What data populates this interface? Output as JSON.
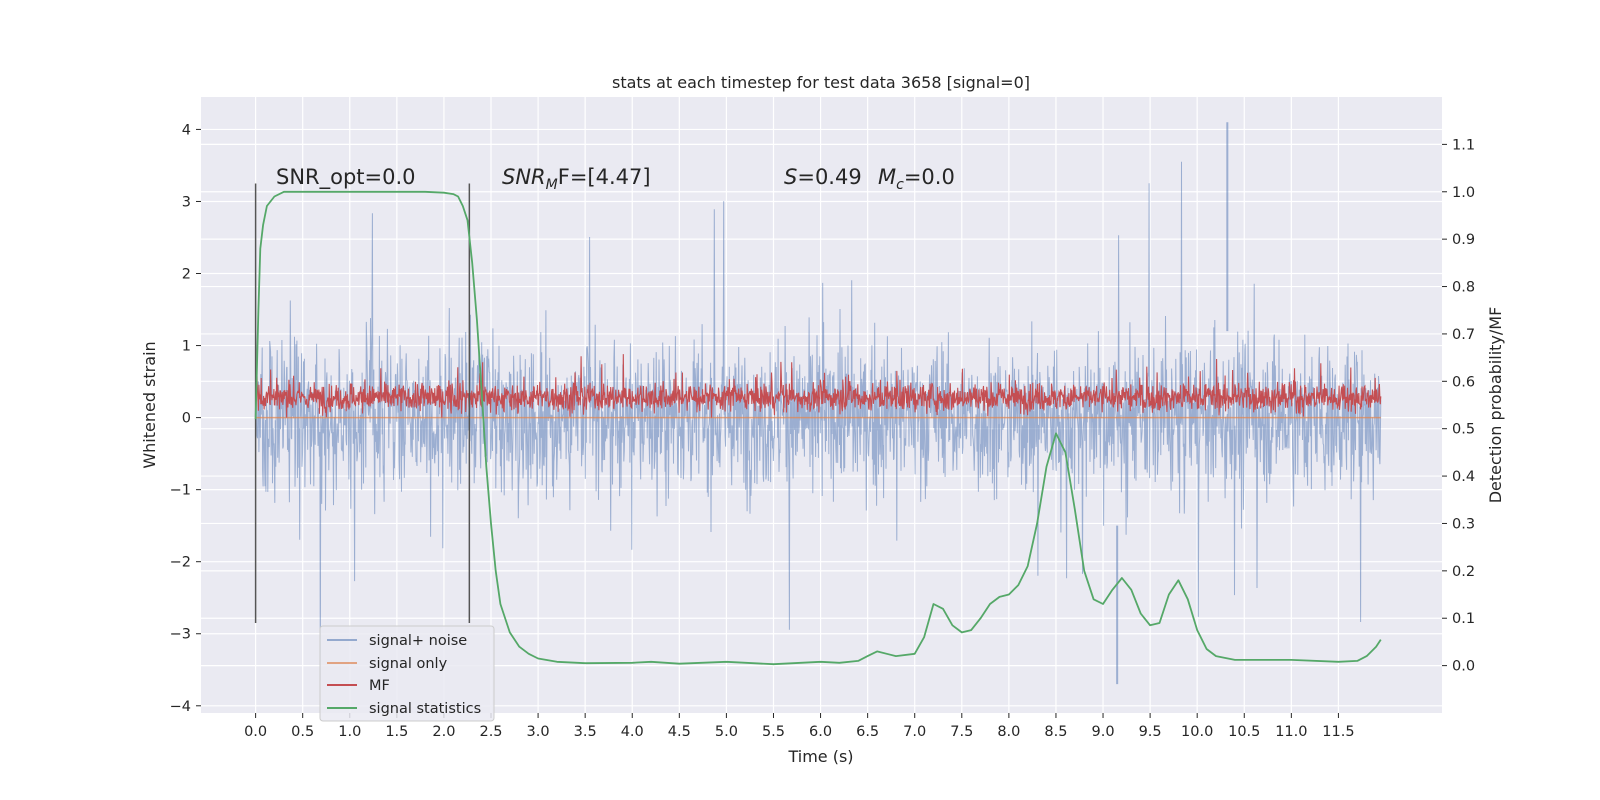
{
  "chart_data": {
    "type": "line",
    "title": "stats at each timestep for test data 3658 [signal=0]",
    "xlabel": "Time (s)",
    "ylabel_left": "Whitened strain",
    "ylabel_right": "Detection probability/MF",
    "xlim": [
      -0.58,
      12.6
    ],
    "ylim_left": [
      -4.1,
      4.45
    ],
    "ylim_right": [
      -0.1,
      1.2
    ],
    "x_ticks": [
      "0.0",
      "0.5",
      "1.0",
      "1.5",
      "2.0",
      "2.5",
      "3.0",
      "3.5",
      "4.0",
      "4.5",
      "5.0",
      "5.5",
      "6.0",
      "6.5",
      "7.0",
      "7.5",
      "8.0",
      "8.5",
      "9.0",
      "9.5",
      "10.0",
      "10.5",
      "11.0",
      "11.5"
    ],
    "y_ticks_left": [
      "−4",
      "−3",
      "−2",
      "−1",
      "0",
      "1",
      "2",
      "3",
      "4"
    ],
    "y_ticks_right": [
      "0.0",
      "0.1",
      "0.2",
      "0.3",
      "0.4",
      "0.5",
      "0.6",
      "0.7",
      "0.8",
      "0.9",
      "1.0",
      "1.1"
    ],
    "grid": true,
    "legend_position": "lower-left",
    "annotations": {
      "snr_opt": "SNR_opt=0.0",
      "snr_mf_name": "SNR",
      "snr_mf_sub": "M",
      "snr_mf_value": "F=[4.47]",
      "s_name": "S",
      "s_value": "=0.49",
      "mc_name": "M",
      "mc_sub": "c",
      "mc_value": "=0.0"
    },
    "markers": {
      "vertical_lines_x": [
        0.0,
        2.27
      ],
      "y_range": [
        -2.85,
        3.25
      ]
    },
    "series": [
      {
        "name": "signal+ noise",
        "color": "#4c72b0",
        "axis": "left",
        "description_range": [
          -3.7,
          4.1
        ],
        "x_range": [
          0.0,
          11.95
        ],
        "rendering": "dense noise band, envelope approx ±1.5 with spikes to ±3"
      },
      {
        "name": "signal only",
        "color": "#dd8452",
        "axis": "left",
        "x": [
          0.0,
          11.95
        ],
        "y": [
          0.0,
          0.0
        ]
      },
      {
        "name": "MF",
        "color": "#c44e52",
        "axis": "left",
        "x_range": [
          0.0,
          11.95
        ],
        "rendering": "dense positive noise band between 0 and ~0.9"
      },
      {
        "name": "signal statistics",
        "color": "#55a868",
        "axis": "right",
        "x": [
          0.0,
          0.03,
          0.05,
          0.08,
          0.12,
          0.2,
          0.3,
          0.5,
          1.0,
          1.5,
          1.8,
          2.0,
          2.1,
          2.15,
          2.2,
          2.25,
          2.3,
          2.35,
          2.4,
          2.45,
          2.5,
          2.55,
          2.6,
          2.7,
          2.8,
          2.9,
          3.0,
          3.2,
          3.5,
          4.0,
          4.2,
          4.5,
          5.0,
          5.5,
          6.0,
          6.2,
          6.4,
          6.5,
          6.6,
          6.8,
          7.0,
          7.1,
          7.2,
          7.3,
          7.4,
          7.5,
          7.6,
          7.7,
          7.8,
          7.9,
          8.0,
          8.1,
          8.2,
          8.3,
          8.4,
          8.5,
          8.6,
          8.7,
          8.8,
          8.9,
          9.0,
          9.1,
          9.2,
          9.3,
          9.4,
          9.5,
          9.6,
          9.7,
          9.8,
          9.9,
          10.0,
          10.1,
          10.2,
          10.4,
          10.6,
          11.0,
          11.5,
          11.7,
          11.8,
          11.9,
          11.95
        ],
        "y": [
          0.52,
          0.75,
          0.88,
          0.93,
          0.97,
          0.99,
          1.0,
          1.0,
          1.0,
          1.0,
          1.0,
          0.998,
          0.995,
          0.99,
          0.97,
          0.94,
          0.85,
          0.73,
          0.58,
          0.42,
          0.3,
          0.2,
          0.13,
          0.07,
          0.04,
          0.025,
          0.015,
          0.008,
          0.005,
          0.006,
          0.008,
          0.004,
          0.008,
          0.003,
          0.008,
          0.006,
          0.01,
          0.02,
          0.03,
          0.02,
          0.025,
          0.06,
          0.13,
          0.12,
          0.085,
          0.07,
          0.075,
          0.1,
          0.13,
          0.145,
          0.15,
          0.17,
          0.21,
          0.3,
          0.42,
          0.49,
          0.45,
          0.33,
          0.2,
          0.14,
          0.13,
          0.16,
          0.185,
          0.16,
          0.11,
          0.085,
          0.09,
          0.15,
          0.18,
          0.14,
          0.075,
          0.035,
          0.02,
          0.012,
          0.012,
          0.012,
          0.008,
          0.01,
          0.02,
          0.04,
          0.055
        ]
      }
    ]
  }
}
